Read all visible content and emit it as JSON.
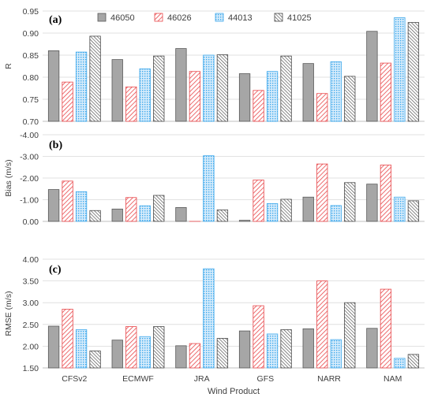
{
  "chart_data": {
    "type": "bar",
    "categories": [
      "CFSv2",
      "ECMWF",
      "JRA",
      "GFS",
      "NARR",
      "NAM"
    ],
    "xlabel": "Wind Product",
    "legend": {
      "placement": "top",
      "entries": [
        "46050",
        "46026",
        "44013",
        "41025"
      ]
    },
    "series_styles": [
      {
        "name": "46050",
        "fill": "#a6a6a6",
        "stroke": "#595959",
        "pattern": "solid"
      },
      {
        "name": "46026",
        "fill": "#ffffff",
        "stroke": "#e8474a",
        "pattern": "hatch"
      },
      {
        "name": "44013",
        "fill": "#d7ecfb",
        "stroke": "#3fa9ec",
        "pattern": "dots"
      },
      {
        "name": "41025",
        "fill": "#ffffff",
        "stroke": "#4a4a4a",
        "pattern": "dense-hatch"
      }
    ],
    "panels": [
      {
        "label": "(a)",
        "ylabel": "R",
        "ylim": [
          0.7,
          0.95
        ],
        "inverted": false,
        "ticks": [
          "0.70",
          "0.75",
          "0.80",
          "0.85",
          "0.90",
          "0.95"
        ],
        "series": [
          {
            "name": "46050",
            "values": [
              0.86,
              0.84,
              0.865,
              0.808,
              0.831,
              0.904
            ]
          },
          {
            "name": "46026",
            "values": [
              0.789,
              0.778,
              0.813,
              0.77,
              0.763,
              0.832
            ]
          },
          {
            "name": "44013",
            "values": [
              0.857,
              0.819,
              0.85,
              0.813,
              0.835,
              0.935
            ]
          },
          {
            "name": "41025",
            "values": [
              0.893,
              0.848,
              0.851,
              0.848,
              0.802,
              0.924
            ]
          }
        ]
      },
      {
        "label": "(b)",
        "ylabel": "Bias (m/s)",
        "ylim": [
          0.0,
          -4.0
        ],
        "inverted": true,
        "ticks": [
          "0.00",
          "-1.00",
          "-2.00",
          "-3.00",
          "-4.00"
        ],
        "series": [
          {
            "name": "46050",
            "values": [
              -1.47,
              -0.57,
              -0.64,
              -0.05,
              -1.12,
              -1.72
            ]
          },
          {
            "name": "46026",
            "values": [
              -1.86,
              -1.1,
              0.0,
              -1.91,
              -2.65,
              -2.6
            ]
          },
          {
            "name": "44013",
            "values": [
              -1.37,
              -0.72,
              -3.03,
              -0.82,
              -0.73,
              -1.12
            ]
          },
          {
            "name": "41025",
            "values": [
              -0.5,
              -1.2,
              -0.53,
              -1.02,
              -1.79,
              -0.95
            ]
          }
        ]
      },
      {
        "label": "(c)",
        "ylabel": "RMSE (m/s)",
        "ylim": [
          1.5,
          4.0
        ],
        "inverted": false,
        "ticks": [
          "1.50",
          "2.00",
          "2.50",
          "3.00",
          "3.50",
          "4.00"
        ],
        "series": [
          {
            "name": "46050",
            "values": [
              2.46,
              2.14,
              2.01,
              2.35,
              2.4,
              2.41
            ]
          },
          {
            "name": "46026",
            "values": [
              2.85,
              2.45,
              2.06,
              2.93,
              3.5,
              3.31
            ]
          },
          {
            "name": "44013",
            "values": [
              2.38,
              2.22,
              3.78,
              2.28,
              2.15,
              1.72
            ]
          },
          {
            "name": "41025",
            "values": [
              1.89,
              2.45,
              2.18,
              2.38,
              3.0,
              1.81
            ]
          }
        ]
      }
    ]
  }
}
